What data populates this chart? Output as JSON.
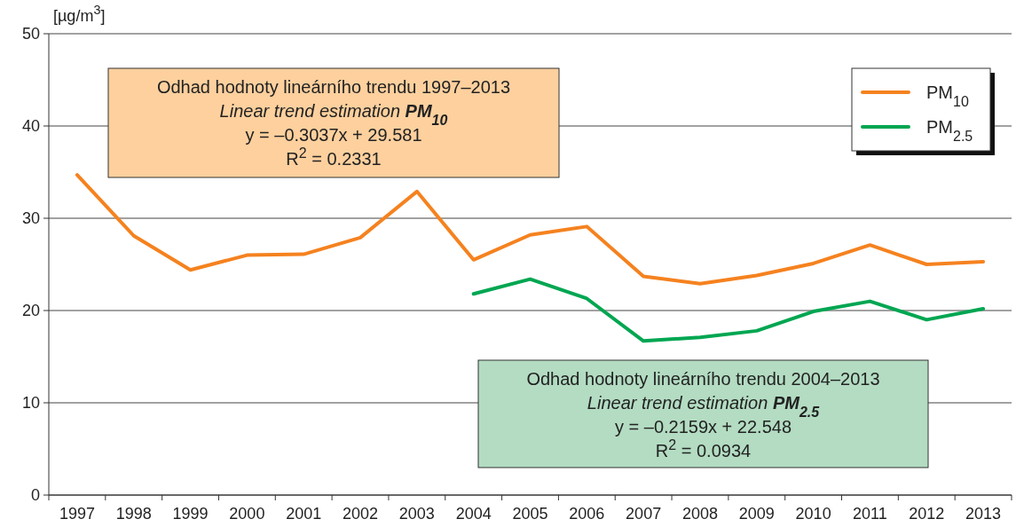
{
  "chart_data": {
    "type": "line",
    "ylabel": "[µg/m$^{3}$]",
    "categories": [
      "1997",
      "1998",
      "1999",
      "2000",
      "2001",
      "2002",
      "2003",
      "2004",
      "2005",
      "2006",
      "2007",
      "2008",
      "2009",
      "2010",
      "2011",
      "2012",
      "2013"
    ],
    "series": [
      {
        "name": "PM$_{10}$",
        "color": "#f5821f",
        "values": [
          34.7,
          28.1,
          24.4,
          26.0,
          26.1,
          27.9,
          32.9,
          25.5,
          28.2,
          29.1,
          23.7,
          22.9,
          23.8,
          25.1,
          27.1,
          25.0,
          25.3
        ]
      },
      {
        "name": "PM$_{2.5}$",
        "color": "#00a651",
        "values": [
          null,
          null,
          null,
          null,
          null,
          null,
          null,
          21.8,
          23.4,
          21.3,
          16.7,
          17.1,
          17.8,
          19.9,
          21.0,
          19.0,
          20.2
        ]
      }
    ],
    "ylim": [
      0,
      50
    ],
    "yticks": [
      0,
      10,
      20,
      30,
      40,
      50
    ],
    "grid": "y",
    "legend": "top right",
    "marker": "none",
    "line_style": "solid",
    "annotations": [
      "Odhad hodnoty lineárního trendu 1997–2013\nLinear trend estimation PM$_{10}$\ny = –0.3037x + 29.581\nR$^{2}$ = 0.2331",
      "Odhad hodnoty lineárního trendu 2004–2013\nLinear trend estimation PM$_{2.5}$\ny = –0.2159x + 22.548\nR$^{2}$ = 0.0934"
    ]
  }
}
